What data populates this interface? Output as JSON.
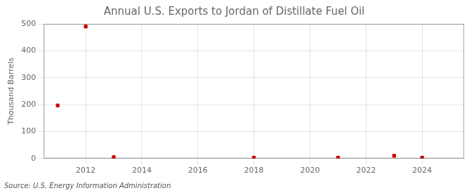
{
  "chart_data": {
    "type": "scatter",
    "title": "Annual U.S. Exports to Jordan of Distillate Fuel Oil",
    "y_label": "Thousand Barrels",
    "source": "Source: U.S. Energy Information Administration",
    "x": [
      2011,
      2012,
      2013,
      2018,
      2021,
      2023,
      2024
    ],
    "values": [
      197,
      490,
      5,
      3,
      3,
      10,
      3
    ],
    "color": "#cc0000",
    "marker": "square",
    "xlim": [
      2010.5,
      2025.5
    ],
    "xticks": [
      2012,
      2014,
      2016,
      2018,
      2020,
      2022,
      2024
    ],
    "ylim": [
      0,
      500
    ],
    "yticks": [
      0,
      100,
      200,
      300,
      400,
      500
    ],
    "grid": true,
    "legend": false
  }
}
